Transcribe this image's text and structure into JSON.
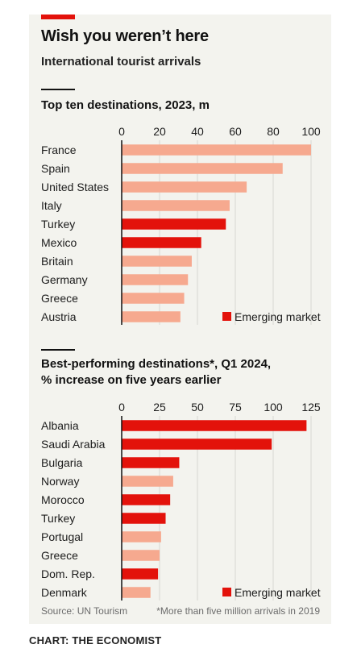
{
  "header": {
    "title": "Wish you weren’t here",
    "subtitle": "International tourist arrivals"
  },
  "colors": {
    "emerging": "#e3120b",
    "other": "#f6a98f",
    "grid": "#d7d7d2",
    "text": "#1c1c1c"
  },
  "chart_data": [
    {
      "type": "bar",
      "orientation": "horizontal",
      "title": "Top ten destinations, 2023, m",
      "categories": [
        "France",
        "Spain",
        "United States",
        "Italy",
        "Turkey",
        "Mexico",
        "Britain",
        "Germany",
        "Greece",
        "Austria"
      ],
      "values": [
        100,
        85,
        66,
        57,
        55,
        42,
        37,
        35,
        33,
        31
      ],
      "emerging": [
        false,
        false,
        false,
        false,
        true,
        true,
        false,
        false,
        false,
        false
      ],
      "xlim": [
        0,
        100
      ],
      "ticks": [
        0,
        20,
        40,
        60,
        80,
        100
      ],
      "legend": {
        "label": "Emerging market",
        "position": "bottom-right"
      },
      "grid": true
    },
    {
      "type": "bar",
      "orientation": "horizontal",
      "title_lines": [
        "Best-performing destinations*, Q1 2024,",
        "% increase on five years earlier"
      ],
      "categories": [
        "Albania",
        "Saudi Arabia",
        "Bulgaria",
        "Norway",
        "Morocco",
        "Turkey",
        "Portugal",
        "Greece",
        "Dom. Rep.",
        "Denmark"
      ],
      "values": [
        122,
        99,
        38,
        34,
        32,
        29,
        26,
        25,
        24,
        19
      ],
      "emerging": [
        true,
        true,
        true,
        false,
        true,
        true,
        false,
        false,
        true,
        false
      ],
      "xlim": [
        0,
        125
      ],
      "ticks": [
        0,
        25,
        50,
        75,
        100,
        125
      ],
      "legend": {
        "label": "Emerging market",
        "position": "bottom-right"
      },
      "grid": true
    }
  ],
  "footer": {
    "source": "Source: UN Tourism",
    "footnote": "*More than five million arrivals in 2019",
    "credit": "CHART: THE ECONOMIST"
  }
}
